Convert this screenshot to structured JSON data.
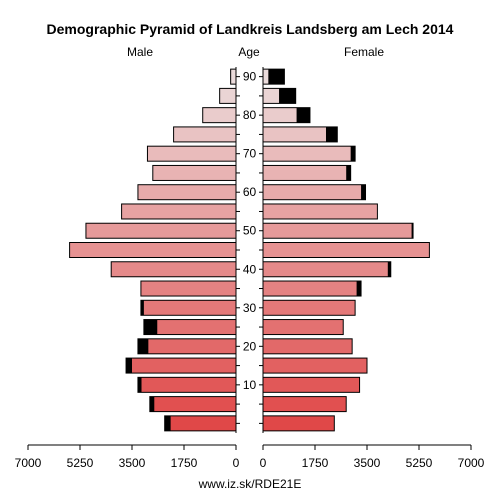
{
  "chart_data": {
    "type": "bar",
    "orientation": "horizontal-pyramid",
    "title": "Demographic Pyramid of Landkreis Landsberg am Lech 2014",
    "left_label": "Male",
    "center_label": "Age",
    "right_label": "Female",
    "footer": "www.iz.sk/RDE21E",
    "x_ticks": [
      "7000",
      "5250",
      "3500",
      "1750",
      "0",
      "0",
      "1750",
      "3500",
      "5250",
      "7000"
    ],
    "age_ticks": [
      "10",
      "20",
      "30",
      "40",
      "50",
      "60",
      "70",
      "80",
      "90"
    ],
    "xlim": [
      0,
      7000
    ],
    "age_groups": [
      "0-4",
      "5-9",
      "10-14",
      "15-19",
      "20-24",
      "25-29",
      "30-34",
      "35-39",
      "40-44",
      "45-49",
      "50-54",
      "55-59",
      "60-64",
      "65-69",
      "70-74",
      "75-79",
      "80-84",
      "85-89",
      "90+"
    ],
    "series": [
      {
        "name": "Male",
        "total": [
          2400,
          2900,
          3300,
          3700,
          3300,
          3100,
          3200,
          3200,
          4200,
          5600,
          5050,
          3850,
          3300,
          2800,
          2980,
          2100,
          1120,
          550,
          180
        ],
        "foreign": [
          200,
          150,
          120,
          200,
          350,
          450,
          100,
          0,
          0,
          0,
          0,
          0,
          0,
          0,
          0,
          0,
          0,
          0,
          0
        ]
      },
      {
        "name": "Female",
        "total": [
          2400,
          2800,
          3250,
          3500,
          3000,
          2700,
          3100,
          3300,
          4300,
          5600,
          5050,
          3850,
          3450,
          2950,
          3100,
          2500,
          1580,
          1100,
          720
        ],
        "foreign": [
          0,
          0,
          0,
          0,
          0,
          0,
          0,
          150,
          100,
          0,
          50,
          0,
          150,
          150,
          150,
          380,
          450,
          560,
          540
        ]
      }
    ],
    "colors": {
      "young": "#e04848",
      "old": "#ebdcdc",
      "foreign": "#000000",
      "bar_border": "#000000"
    }
  }
}
